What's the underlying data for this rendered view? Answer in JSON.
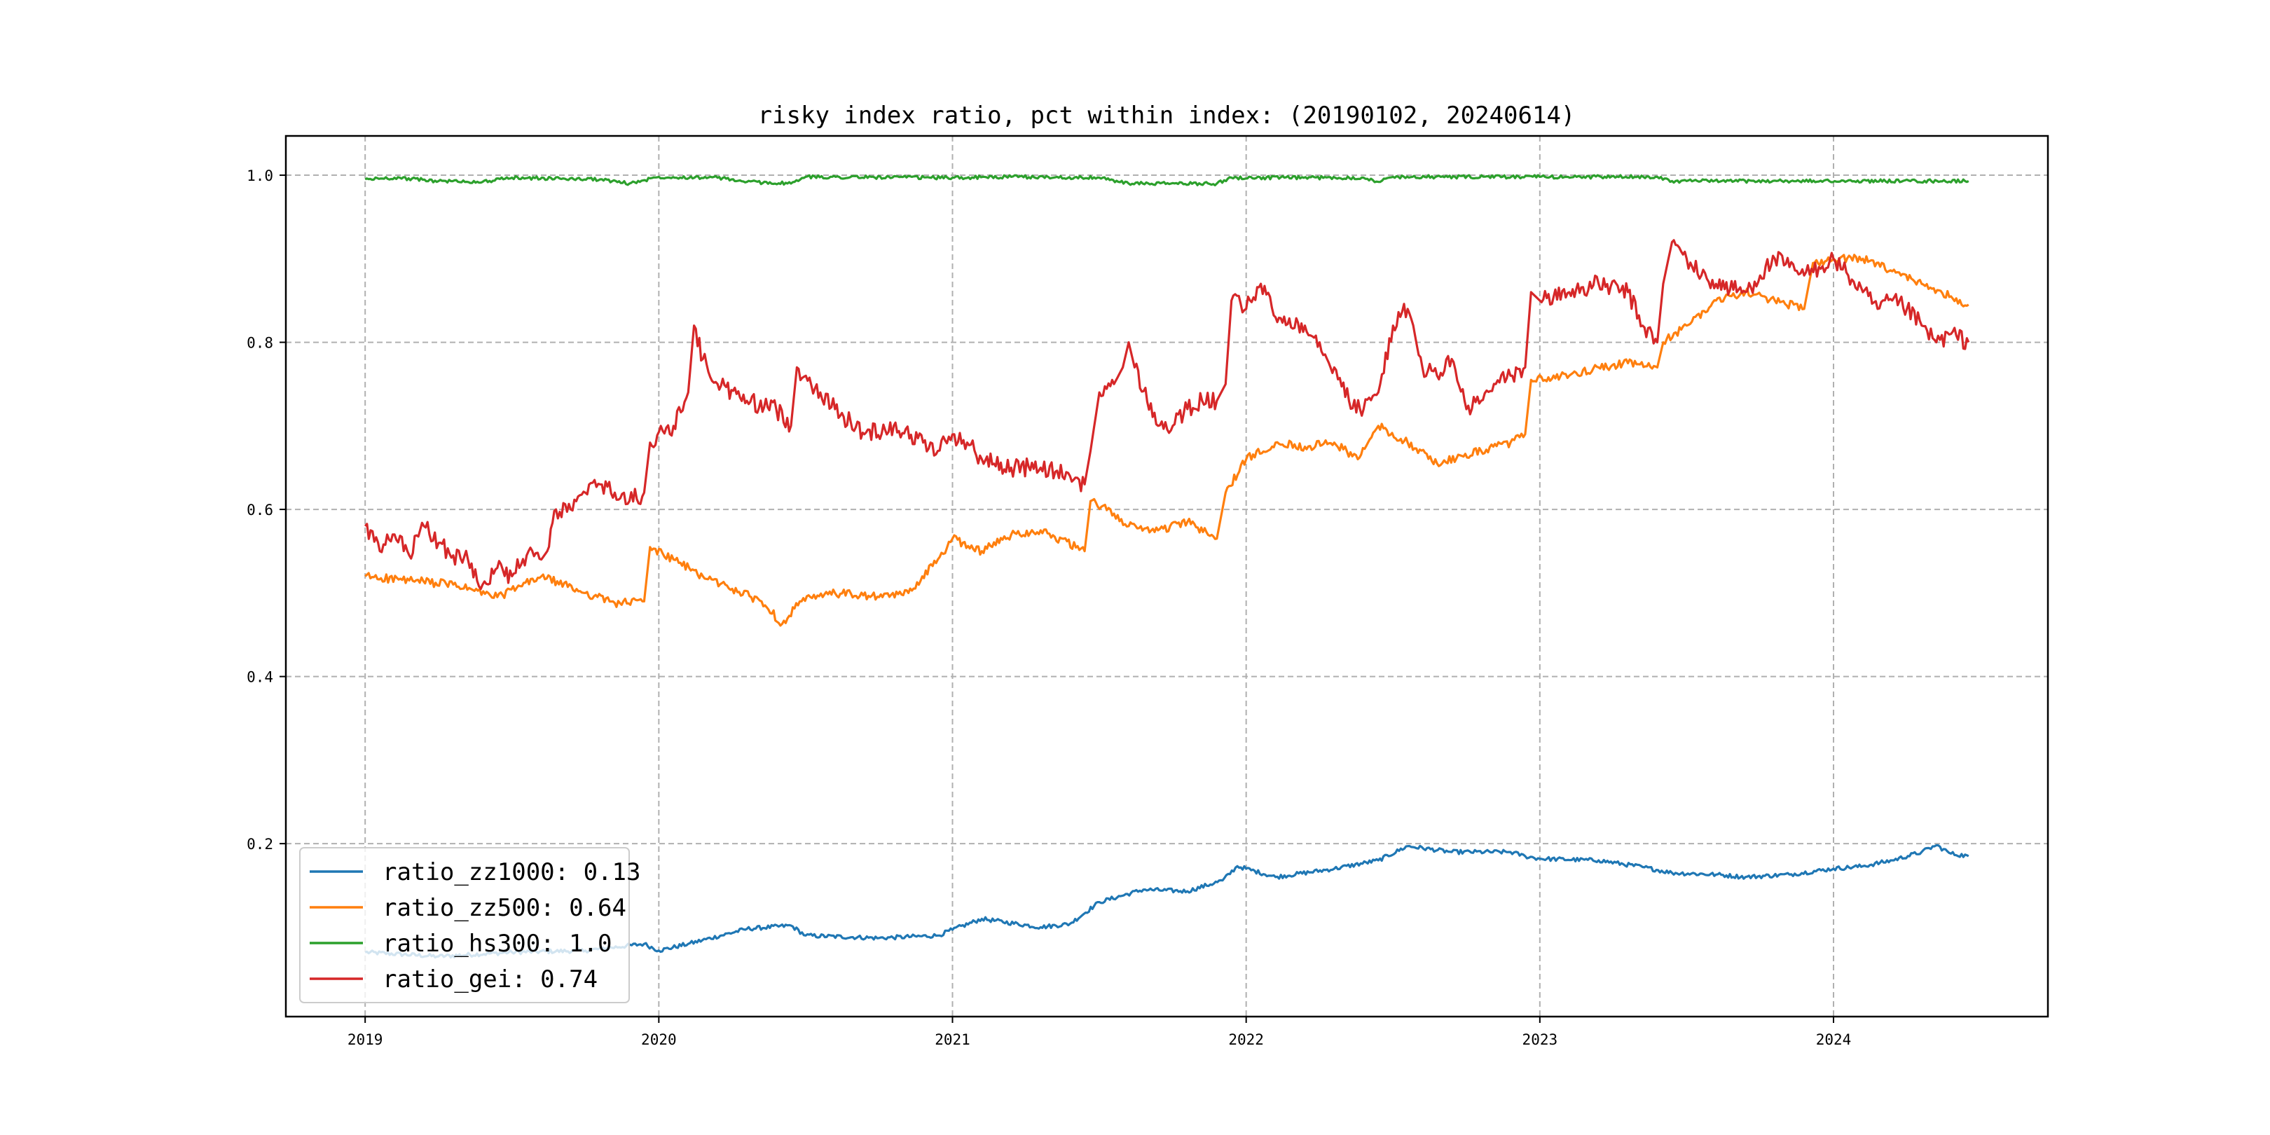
{
  "chart_data": {
    "type": "line",
    "title": "risky index ratio, pct within index: (20190102, 20240614)",
    "xlabel": "",
    "ylabel": "",
    "x_range": [
      2018.73,
      2024.73
    ],
    "ylim": [
      -0.007,
      1.047
    ],
    "x_ticks": [
      {
        "value": 2019,
        "label": "2019"
      },
      {
        "value": 2020,
        "label": "2020"
      },
      {
        "value": 2021,
        "label": "2021"
      },
      {
        "value": 2022,
        "label": "2022"
      },
      {
        "value": 2023,
        "label": "2023"
      },
      {
        "value": 2024,
        "label": "2024"
      }
    ],
    "y_ticks": [
      {
        "value": 0.2,
        "label": "0.2"
      },
      {
        "value": 0.4,
        "label": "0.4"
      },
      {
        "value": 0.6,
        "label": "0.6"
      },
      {
        "value": 0.8,
        "label": "0.8"
      },
      {
        "value": 1.0,
        "label": "1.0"
      }
    ],
    "grid": true,
    "legend_position": "lower-left",
    "series": [
      {
        "name": "ratio_zz1000: 0.13",
        "color": "#1f77b4",
        "points": [
          [
            2019.0,
            0.07
          ],
          [
            2019.25,
            0.065
          ],
          [
            2019.5,
            0.07
          ],
          [
            2019.75,
            0.072
          ],
          [
            2019.95,
            0.08
          ],
          [
            2020.0,
            0.072
          ],
          [
            2020.1,
            0.08
          ],
          [
            2020.3,
            0.098
          ],
          [
            2020.45,
            0.102
          ],
          [
            2020.5,
            0.09
          ],
          [
            2020.75,
            0.087
          ],
          [
            2020.95,
            0.09
          ],
          [
            2021.0,
            0.097
          ],
          [
            2021.1,
            0.11
          ],
          [
            2021.3,
            0.1
          ],
          [
            2021.4,
            0.104
          ],
          [
            2021.5,
            0.13
          ],
          [
            2021.65,
            0.145
          ],
          [
            2021.8,
            0.143
          ],
          [
            2021.92,
            0.156
          ],
          [
            2021.97,
            0.173
          ],
          [
            2022.1,
            0.16
          ],
          [
            2022.3,
            0.17
          ],
          [
            2022.45,
            0.18
          ],
          [
            2022.55,
            0.197
          ],
          [
            2022.7,
            0.19
          ],
          [
            2022.9,
            0.19
          ],
          [
            2022.95,
            0.185
          ],
          [
            2023.0,
            0.182
          ],
          [
            2023.2,
            0.18
          ],
          [
            2023.35,
            0.172
          ],
          [
            2023.45,
            0.165
          ],
          [
            2023.6,
            0.163
          ],
          [
            2023.7,
            0.16
          ],
          [
            2023.85,
            0.163
          ],
          [
            2024.0,
            0.17
          ],
          [
            2024.1,
            0.173
          ],
          [
            2024.2,
            0.18
          ],
          [
            2024.3,
            0.19
          ],
          [
            2024.35,
            0.198
          ],
          [
            2024.4,
            0.188
          ],
          [
            2024.46,
            0.185
          ]
        ]
      },
      {
        "name": "ratio_zz500: 0.64",
        "color": "#ff7f0e",
        "points": [
          [
            2019.0,
            0.52
          ],
          [
            2019.15,
            0.515
          ],
          [
            2019.3,
            0.51
          ],
          [
            2019.45,
            0.495
          ],
          [
            2019.6,
            0.52
          ],
          [
            2019.75,
            0.5
          ],
          [
            2019.85,
            0.488
          ],
          [
            2019.95,
            0.49
          ],
          [
            2019.97,
            0.555
          ],
          [
            2020.05,
            0.54
          ],
          [
            2020.15,
            0.52
          ],
          [
            2020.25,
            0.505
          ],
          [
            2020.35,
            0.49
          ],
          [
            2020.42,
            0.463
          ],
          [
            2020.48,
            0.49
          ],
          [
            2020.6,
            0.5
          ],
          [
            2020.75,
            0.495
          ],
          [
            2020.85,
            0.5
          ],
          [
            2020.95,
            0.54
          ],
          [
            2021.0,
            0.565
          ],
          [
            2021.1,
            0.55
          ],
          [
            2021.2,
            0.57
          ],
          [
            2021.3,
            0.575
          ],
          [
            2021.45,
            0.55
          ],
          [
            2021.47,
            0.61
          ],
          [
            2021.55,
            0.595
          ],
          [
            2021.6,
            0.58
          ],
          [
            2021.7,
            0.575
          ],
          [
            2021.8,
            0.585
          ],
          [
            2021.9,
            0.565
          ],
          [
            2021.93,
            0.62
          ],
          [
            2022.0,
            0.66
          ],
          [
            2022.1,
            0.68
          ],
          [
            2022.2,
            0.675
          ],
          [
            2022.3,
            0.68
          ],
          [
            2022.38,
            0.66
          ],
          [
            2022.45,
            0.7
          ],
          [
            2022.55,
            0.68
          ],
          [
            2022.65,
            0.655
          ],
          [
            2022.8,
            0.67
          ],
          [
            2022.9,
            0.68
          ],
          [
            2022.95,
            0.69
          ],
          [
            2022.97,
            0.755
          ],
          [
            2023.1,
            0.76
          ],
          [
            2023.2,
            0.77
          ],
          [
            2023.3,
            0.775
          ],
          [
            2023.4,
            0.77
          ],
          [
            2023.42,
            0.8
          ],
          [
            2023.5,
            0.82
          ],
          [
            2023.6,
            0.85
          ],
          [
            2023.7,
            0.86
          ],
          [
            2023.8,
            0.85
          ],
          [
            2023.9,
            0.84
          ],
          [
            2023.93,
            0.895
          ],
          [
            2024.0,
            0.9
          ],
          [
            2024.1,
            0.9
          ],
          [
            2024.2,
            0.885
          ],
          [
            2024.3,
            0.87
          ],
          [
            2024.4,
            0.855
          ],
          [
            2024.46,
            0.845
          ]
        ]
      },
      {
        "name": "ratio_hs300: 1.0",
        "color": "#2ca02c",
        "points": [
          [
            2019.0,
            0.995
          ],
          [
            2019.1,
            0.997
          ],
          [
            2019.25,
            0.993
          ],
          [
            2019.4,
            0.992
          ],
          [
            2019.5,
            0.997
          ],
          [
            2019.8,
            0.995
          ],
          [
            2019.9,
            0.99
          ],
          [
            2020.0,
            0.998
          ],
          [
            2020.2,
            0.997
          ],
          [
            2020.3,
            0.992
          ],
          [
            2020.45,
            0.99
          ],
          [
            2020.5,
            0.998
          ],
          [
            2021.0,
            0.997
          ],
          [
            2021.2,
            0.998
          ],
          [
            2021.5,
            0.997
          ],
          [
            2021.6,
            0.99
          ],
          [
            2021.9,
            0.99
          ],
          [
            2021.95,
            0.997
          ],
          [
            2022.4,
            0.997
          ],
          [
            2022.45,
            0.992
          ],
          [
            2022.5,
            0.998
          ],
          [
            2023.0,
            0.998
          ],
          [
            2023.4,
            0.998
          ],
          [
            2023.45,
            0.993
          ],
          [
            2023.5,
            0.993
          ],
          [
            2024.46,
            0.993
          ]
        ]
      },
      {
        "name": "ratio_gei: 0.74",
        "color": "#d62728",
        "points": [
          [
            2019.0,
            0.58
          ],
          [
            2019.05,
            0.55
          ],
          [
            2019.1,
            0.57
          ],
          [
            2019.15,
            0.545
          ],
          [
            2019.2,
            0.58
          ],
          [
            2019.25,
            0.56
          ],
          [
            2019.3,
            0.545
          ],
          [
            2019.35,
            0.54
          ],
          [
            2019.4,
            0.51
          ],
          [
            2019.45,
            0.53
          ],
          [
            2019.5,
            0.52
          ],
          [
            2019.55,
            0.545
          ],
          [
            2019.6,
            0.54
          ],
          [
            2019.62,
            0.55
          ],
          [
            2019.65,
            0.6
          ],
          [
            2019.7,
            0.6
          ],
          [
            2019.75,
            0.62
          ],
          [
            2019.8,
            0.63
          ],
          [
            2019.85,
            0.62
          ],
          [
            2019.9,
            0.61
          ],
          [
            2019.95,
            0.62
          ],
          [
            2019.97,
            0.68
          ],
          [
            2020.05,
            0.7
          ],
          [
            2020.1,
            0.74
          ],
          [
            2020.12,
            0.82
          ],
          [
            2020.15,
            0.78
          ],
          [
            2020.2,
            0.75
          ],
          [
            2020.3,
            0.73
          ],
          [
            2020.4,
            0.72
          ],
          [
            2020.45,
            0.7
          ],
          [
            2020.47,
            0.77
          ],
          [
            2020.55,
            0.74
          ],
          [
            2020.6,
            0.72
          ],
          [
            2020.7,
            0.69
          ],
          [
            2020.8,
            0.7
          ],
          [
            2020.9,
            0.68
          ],
          [
            2020.95,
            0.67
          ],
          [
            2021.0,
            0.69
          ],
          [
            2021.05,
            0.68
          ],
          [
            2021.1,
            0.66
          ],
          [
            2021.2,
            0.65
          ],
          [
            2021.3,
            0.65
          ],
          [
            2021.35,
            0.645
          ],
          [
            2021.4,
            0.64
          ],
          [
            2021.45,
            0.63
          ],
          [
            2021.47,
            0.67
          ],
          [
            2021.5,
            0.74
          ],
          [
            2021.55,
            0.75
          ],
          [
            2021.58,
            0.77
          ],
          [
            2021.6,
            0.8
          ],
          [
            2021.62,
            0.77
          ],
          [
            2021.7,
            0.7
          ],
          [
            2021.75,
            0.7
          ],
          [
            2021.8,
            0.72
          ],
          [
            2021.85,
            0.73
          ],
          [
            2021.9,
            0.73
          ],
          [
            2021.93,
            0.75
          ],
          [
            2021.95,
            0.85
          ],
          [
            2022.0,
            0.84
          ],
          [
            2022.05,
            0.87
          ],
          [
            2022.1,
            0.83
          ],
          [
            2022.2,
            0.82
          ],
          [
            2022.25,
            0.8
          ],
          [
            2022.3,
            0.77
          ],
          [
            2022.35,
            0.73
          ],
          [
            2022.4,
            0.72
          ],
          [
            2022.45,
            0.74
          ],
          [
            2022.5,
            0.82
          ],
          [
            2022.55,
            0.84
          ],
          [
            2022.6,
            0.77
          ],
          [
            2022.65,
            0.76
          ],
          [
            2022.7,
            0.78
          ],
          [
            2022.75,
            0.72
          ],
          [
            2022.8,
            0.73
          ],
          [
            2022.85,
            0.75
          ],
          [
            2022.9,
            0.76
          ],
          [
            2022.95,
            0.77
          ],
          [
            2022.97,
            0.86
          ],
          [
            2023.0,
            0.85
          ],
          [
            2023.1,
            0.86
          ],
          [
            2023.2,
            0.87
          ],
          [
            2023.3,
            0.86
          ],
          [
            2023.35,
            0.82
          ],
          [
            2023.4,
            0.8
          ],
          [
            2023.42,
            0.87
          ],
          [
            2023.45,
            0.92
          ],
          [
            2023.5,
            0.9
          ],
          [
            2023.55,
            0.88
          ],
          [
            2023.6,
            0.87
          ],
          [
            2023.7,
            0.86
          ],
          [
            2023.75,
            0.88
          ],
          [
            2023.8,
            0.9
          ],
          [
            2023.85,
            0.89
          ],
          [
            2023.9,
            0.88
          ],
          [
            2023.95,
            0.89
          ],
          [
            2024.0,
            0.9
          ],
          [
            2024.05,
            0.88
          ],
          [
            2024.1,
            0.86
          ],
          [
            2024.15,
            0.84
          ],
          [
            2024.2,
            0.85
          ],
          [
            2024.25,
            0.84
          ],
          [
            2024.3,
            0.82
          ],
          [
            2024.35,
            0.8
          ],
          [
            2024.4,
            0.81
          ],
          [
            2024.46,
            0.8
          ]
        ]
      }
    ]
  }
}
